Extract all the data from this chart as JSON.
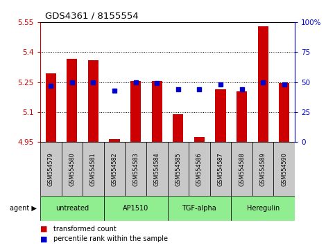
{
  "title": "GDS4361 / 8155554",
  "samples": [
    "GSM554579",
    "GSM554580",
    "GSM554581",
    "GSM554582",
    "GSM554583",
    "GSM554584",
    "GSM554585",
    "GSM554586",
    "GSM554587",
    "GSM554588",
    "GSM554589",
    "GSM554590"
  ],
  "red_values": [
    5.295,
    5.365,
    5.36,
    4.965,
    5.255,
    5.255,
    5.09,
    4.975,
    5.215,
    5.205,
    5.53,
    5.245
  ],
  "blue_values": [
    47,
    50,
    50,
    43,
    50,
    49,
    44,
    44,
    48,
    44,
    50,
    48
  ],
  "ylim_left": [
    4.95,
    5.55
  ],
  "ylim_right": [
    0,
    100
  ],
  "yticks_left": [
    4.95,
    5.1,
    5.25,
    5.4,
    5.55
  ],
  "yticks_right": [
    0,
    25,
    50,
    75,
    100
  ],
  "ytick_labels_left": [
    "4.95",
    "5.1",
    "5.25",
    "5.4",
    "5.55"
  ],
  "ytick_labels_right": [
    "0",
    "25",
    "50",
    "75",
    "100%"
  ],
  "bar_color": "#CC0000",
  "dot_color": "#0000CC",
  "agent_groups": [
    {
      "label": "untreated",
      "start": 0,
      "end": 2
    },
    {
      "label": "AP1510",
      "start": 3,
      "end": 5
    },
    {
      "label": "TGF-alpha",
      "start": 6,
      "end": 8
    },
    {
      "label": "Heregulin",
      "start": 9,
      "end": 11
    }
  ],
  "baseline": 4.95,
  "left_axis_color": "#CC0000",
  "right_axis_color": "#0000CC",
  "legend_items": [
    "transformed count",
    "percentile rank within the sample"
  ],
  "agent_label": "agent",
  "sample_box_color": "#C8C8C8",
  "group_box_color": "#90EE90",
  "bar_width": 0.5
}
